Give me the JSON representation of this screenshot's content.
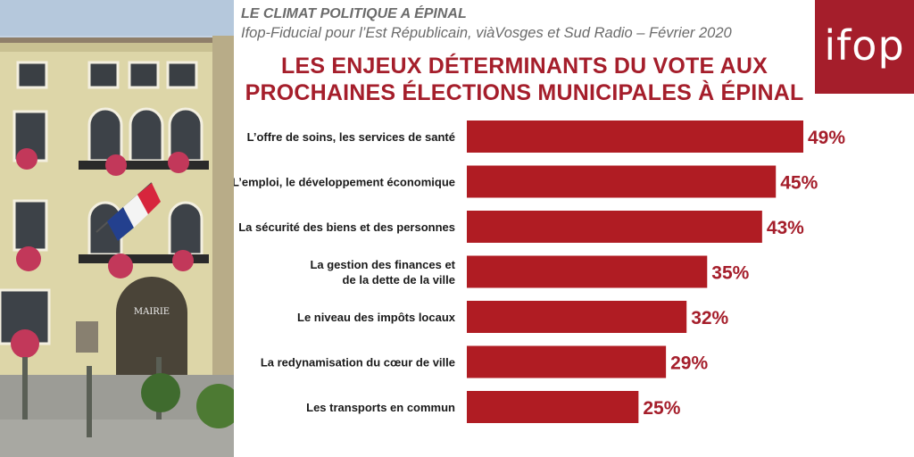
{
  "header": {
    "kicker": "LE CLIMAT POLITIQUE  A ÉPINAL",
    "source": "Ifop-Fiducial pour l’Est Républicain, viàVosges et Sud Radio – Février 2020",
    "logo": "ifop",
    "photo_sign": "MAIRIE"
  },
  "colors": {
    "accent": "#a51e2b",
    "bar": "#b01c23"
  },
  "chart_data": {
    "type": "bar",
    "orientation": "horizontal",
    "title": "LES ENJEUX DÉTERMINANTS DU VOTE AUX PROCHAINES ÉLECTIONS MUNICIPALES À ÉPINAL",
    "title_lines": [
      "LES ENJEUX DÉTERMINANTS DU VOTE AUX",
      "PROCHAINES ÉLECTIONS MUNICIPALES À ÉPINAL"
    ],
    "categories": [
      [
        "L’offre de soins, les services de santé"
      ],
      [
        "L’emploi, le développement économique"
      ],
      [
        "La sécurité des biens et des personnes"
      ],
      [
        "La gestion des finances et",
        "de la dette de la ville"
      ],
      [
        "Le niveau des impôts locaux"
      ],
      [
        "La redynamisation du cœur de ville"
      ],
      [
        "Les transports en commun"
      ]
    ],
    "values": [
      49,
      45,
      43,
      35,
      32,
      29,
      25
    ],
    "value_labels": [
      "49%",
      "45%",
      "43%",
      "35%",
      "32%",
      "29%",
      "25%"
    ],
    "unit": "%",
    "xlim": [
      0,
      49
    ],
    "xlabel": "",
    "ylabel": "",
    "grid": false,
    "legend": "none"
  }
}
